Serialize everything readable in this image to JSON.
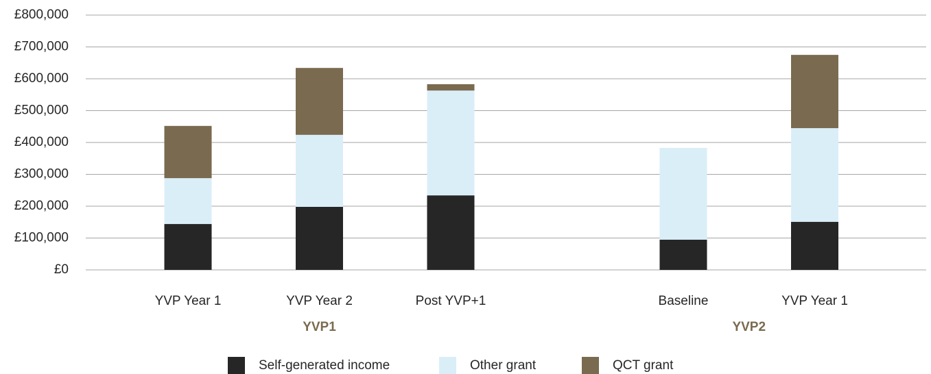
{
  "chart_data": {
    "type": "bar",
    "stacked": true,
    "groups": [
      {
        "name": "YVP1",
        "categories": [
          "YVP Year 1",
          "YVP Year 2",
          "Post YVP+1"
        ]
      },
      {
        "name": "YVP2",
        "categories": [
          "Baseline",
          "YVP Year 1"
        ]
      }
    ],
    "series": [
      {
        "name": "Self-generated income",
        "color": "#262626",
        "values": [
          144000,
          198000,
          234000,
          95000,
          151000
        ]
      },
      {
        "name": "Other grant",
        "color": "#daeef8",
        "values": [
          144000,
          226000,
          329000,
          288000,
          294000
        ]
      },
      {
        "name": "QCT grant",
        "color": "#7a6a4f",
        "values": [
          164000,
          210000,
          20000,
          0,
          230000
        ]
      }
    ],
    "ylim": [
      0,
      800000
    ],
    "yticks": [
      {
        "value": 0,
        "label": "£0"
      },
      {
        "value": 100000,
        "label": "£100,000"
      },
      {
        "value": 200000,
        "label": "£200,000"
      },
      {
        "value": 300000,
        "label": "£300,000"
      },
      {
        "value": 400000,
        "label": "£400,000"
      },
      {
        "value": 500000,
        "label": "£500,000"
      },
      {
        "value": 600000,
        "label": "£600,000"
      },
      {
        "value": 700000,
        "label": "£700,000"
      },
      {
        "value": 800000,
        "label": "£800,000"
      }
    ],
    "grid": true,
    "legend": "bottom"
  }
}
